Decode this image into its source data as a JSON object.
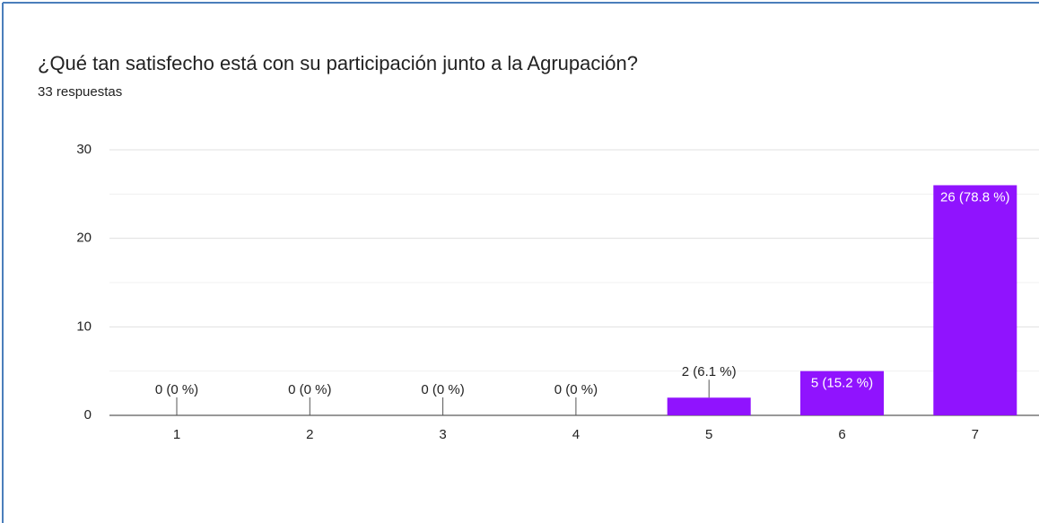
{
  "chart_data": {
    "type": "bar",
    "title": "¿Qué tan satisfecho está con su participación junto a la Agrupación?",
    "subtitle": "33 respuestas",
    "categories": [
      "1",
      "2",
      "3",
      "4",
      "5",
      "6",
      "7"
    ],
    "values": [
      0,
      0,
      0,
      0,
      2,
      5,
      26
    ],
    "value_labels": [
      "0 (0 %)",
      "0 (0 %)",
      "0 (0 %)",
      "0 (0 %)",
      "2 (6.1 %)",
      "5 (15.2 %)",
      "26 (78.8 %)"
    ],
    "color": "#9013fe",
    "ylim": [
      0,
      30
    ],
    "yticks": [
      0,
      10,
      20,
      30
    ],
    "minor_yticks": [
      5,
      15,
      25
    ],
    "grid": true
  }
}
